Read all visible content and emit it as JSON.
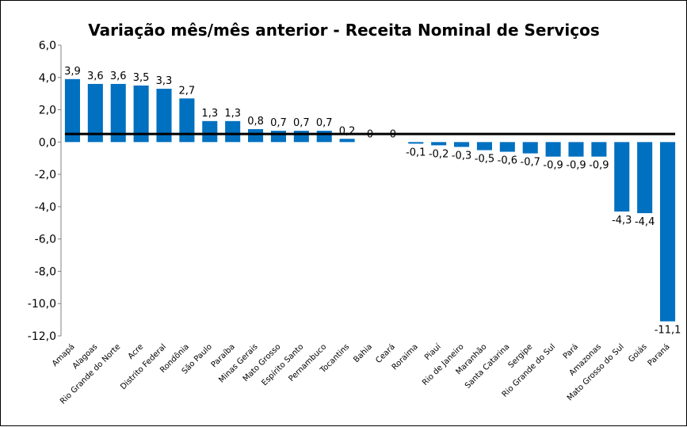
{
  "chart_data": {
    "type": "bar",
    "title": "Variação mês/mês anterior - Receita Nominal de Serviços",
    "xlabel": "",
    "ylabel": "",
    "ylim": [
      -12,
      6
    ],
    "yticks": [
      "6,0",
      "4,0",
      "2,0",
      "0,0",
      "-2,0",
      "-4,0",
      "-6,0",
      "-8,0",
      "-10,0",
      "-12,0"
    ],
    "ytick_values": [
      6,
      4,
      2,
      0,
      -2,
      -4,
      -6,
      -8,
      -10,
      -12
    ],
    "grid": false,
    "legend": "none",
    "bar_color": "#0070C0",
    "line_color": "#000000",
    "reference_line_value": 0.5,
    "categories": [
      "Amapá",
      "Alagoas",
      "Rio Grande do Norte",
      "Acre",
      "Distrito Federal",
      "Rondônia",
      "São Paulo",
      "Paraíba",
      "Minas Gerais",
      "Mato Grosso",
      "Espírito Santo",
      "Pernambuco",
      "Tocantins",
      "Bahia",
      "Ceará",
      "Roraima",
      "Piauí",
      "Rio de Janeiro",
      "Maranhão",
      "Santa Catarina",
      "Sergipe",
      "Rio Grande do Sul",
      "Pará",
      "Amazonas",
      "Mato Grosso do Sul",
      "Goiás",
      "Paraná"
    ],
    "values": [
      3.9,
      3.6,
      3.6,
      3.5,
      3.3,
      2.7,
      1.3,
      1.3,
      0.8,
      0.7,
      0.7,
      0.7,
      0.2,
      0,
      0,
      -0.1,
      -0.2,
      -0.3,
      -0.5,
      -0.6,
      -0.7,
      -0.9,
      -0.9,
      -0.9,
      -4.3,
      -4.4,
      -11.1
    ],
    "value_labels": [
      "3,9",
      "3,6",
      "3,6",
      "3,5",
      "3,3",
      "2,7",
      "1,3",
      "1,3",
      "0,8",
      "0,7",
      "0,7",
      "0,7",
      "0,2",
      "0",
      "0",
      "-0,1",
      "-0,2",
      "-0,3",
      "-0,5",
      "-0,6",
      "-0,7",
      "-0,9",
      "-0,9",
      "-0,9",
      "-4,3",
      "-4,4",
      "-11,1"
    ]
  }
}
